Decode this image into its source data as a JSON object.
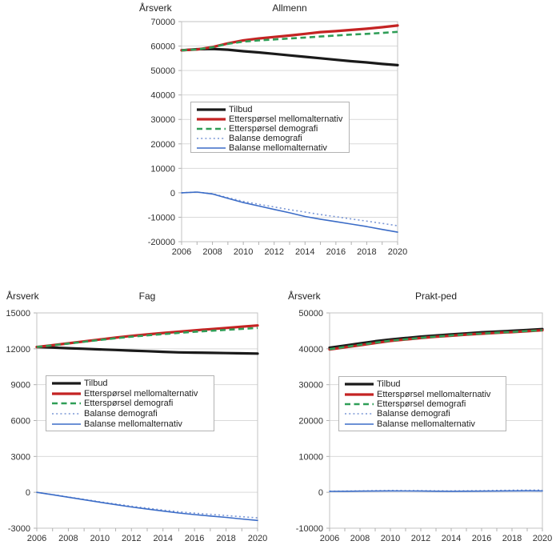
{
  "figure": {
    "background": "#ffffff",
    "grid_color": "#d9d9d9",
    "axis_color": "#c3c3c3",
    "tick_color": "#b0b0b0",
    "label_color": "#303030"
  },
  "chart_data": [
    {
      "type": "line",
      "title": "Allmenn",
      "ylabel": "Årsverk",
      "x": [
        2006,
        2007,
        2008,
        2009,
        2010,
        2011,
        2012,
        2013,
        2014,
        2015,
        2016,
        2017,
        2018,
        2019,
        2020
      ],
      "xtick_labels": [
        "2006",
        "2008",
        "2010",
        "2012",
        "2014",
        "2016",
        "2018",
        "2020"
      ],
      "ylim": [
        -20000,
        70000
      ],
      "yticks": [
        -20000,
        -10000,
        0,
        10000,
        20000,
        30000,
        40000,
        50000,
        60000,
        70000
      ],
      "grid": "horizontal",
      "legend_position": "inside-left-middle",
      "series": [
        {
          "name": "Tilbud",
          "color": "#1a1a1a",
          "style": "solid",
          "width": 3.2,
          "values": [
            58300,
            58700,
            58800,
            58500,
            57900,
            57400,
            56800,
            56200,
            55600,
            55000,
            54400,
            53800,
            53300,
            52700,
            52200
          ]
        },
        {
          "name": "Etterspørsel mellomalternativ",
          "color": "#c42323",
          "style": "solid",
          "width": 3.2,
          "values": [
            58300,
            58600,
            59600,
            61100,
            62300,
            63100,
            63700,
            64300,
            65000,
            65700,
            66100,
            66600,
            67100,
            67700,
            68400
          ]
        },
        {
          "name": "Etterspørsel demografi",
          "color": "#2f9e57",
          "style": "dashed",
          "width": 2.6,
          "values": [
            58300,
            58600,
            59500,
            60900,
            61800,
            62300,
            62700,
            63100,
            63500,
            63900,
            64300,
            64700,
            65000,
            65400,
            65800
          ]
        },
        {
          "name": "Balanse demografi",
          "color": "#7a97d6",
          "style": "dotted",
          "width": 1.6,
          "values": [
            0,
            300,
            -400,
            -2000,
            -3500,
            -4700,
            -5800,
            -6900,
            -7900,
            -8900,
            -9800,
            -10700,
            -11600,
            -12500,
            -13500
          ]
        },
        {
          "name": "Balanse mellomalternativ",
          "color": "#3b6cc7",
          "style": "solid",
          "width": 1.6,
          "values": [
            0,
            300,
            -500,
            -2300,
            -4000,
            -5400,
            -6800,
            -8200,
            -9700,
            -10800,
            -11800,
            -12800,
            -13800,
            -15000,
            -16100
          ]
        }
      ]
    },
    {
      "type": "line",
      "title": "Fag",
      "ylabel": "Årsverk",
      "x": [
        2006,
        2007,
        2008,
        2009,
        2010,
        2011,
        2012,
        2013,
        2014,
        2015,
        2016,
        2017,
        2018,
        2019,
        2020
      ],
      "xtick_labels": [
        "2006",
        "2008",
        "2010",
        "2012",
        "2014",
        "2016",
        "2018",
        "2020"
      ],
      "ylim": [
        -3000,
        15000
      ],
      "yticks": [
        -3000,
        0,
        3000,
        6000,
        9000,
        12000,
        15000
      ],
      "grid": "horizontal",
      "legend_position": "inside-left-middle",
      "series": [
        {
          "name": "Tilbud",
          "color": "#1a1a1a",
          "style": "solid",
          "width": 3.2,
          "values": [
            12150,
            12100,
            12050,
            12000,
            11950,
            11900,
            11850,
            11800,
            11750,
            11700,
            11680,
            11660,
            11640,
            11620,
            11600
          ]
        },
        {
          "name": "Etterspørsel mellomalternativ",
          "color": "#c42323",
          "style": "solid",
          "width": 3.2,
          "values": [
            12150,
            12300,
            12460,
            12620,
            12780,
            12930,
            13080,
            13200,
            13320,
            13430,
            13540,
            13640,
            13740,
            13850,
            13950
          ]
        },
        {
          "name": "Etterspørsel demografi",
          "color": "#2f9e57",
          "style": "dashed",
          "width": 2.6,
          "values": [
            12150,
            12290,
            12440,
            12590,
            12740,
            12880,
            13010,
            13120,
            13230,
            13330,
            13420,
            13500,
            13580,
            13660,
            13740
          ]
        },
        {
          "name": "Balanse demografi",
          "color": "#7a97d6",
          "style": "dotted",
          "width": 1.6,
          "values": [
            0,
            -190,
            -390,
            -590,
            -790,
            -980,
            -1160,
            -1320,
            -1480,
            -1630,
            -1740,
            -1840,
            -1940,
            -2040,
            -2140
          ]
        },
        {
          "name": "Balanse mellomalternativ",
          "color": "#3b6cc7",
          "style": "solid",
          "width": 1.6,
          "values": [
            0,
            -200,
            -410,
            -620,
            -830,
            -1030,
            -1230,
            -1400,
            -1570,
            -1730,
            -1860,
            -1980,
            -2100,
            -2230,
            -2350
          ]
        }
      ]
    },
    {
      "type": "line",
      "title": "Prakt-ped",
      "ylabel": "Årsverk",
      "x": [
        2006,
        2007,
        2008,
        2009,
        2010,
        2011,
        2012,
        2013,
        2014,
        2015,
        2016,
        2017,
        2018,
        2019,
        2020
      ],
      "xtick_labels": [
        "2006",
        "2008",
        "2010",
        "2012",
        "2014",
        "2016",
        "2018",
        "2020"
      ],
      "ylim": [
        -10000,
        50000
      ],
      "yticks": [
        -10000,
        0,
        10000,
        20000,
        30000,
        40000,
        50000
      ],
      "grid": "horizontal",
      "legend_position": "inside-left-middle",
      "series": [
        {
          "name": "Tilbud",
          "color": "#1a1a1a",
          "style": "solid",
          "width": 3.2,
          "values": [
            40300,
            40900,
            41500,
            42100,
            42600,
            43000,
            43400,
            43700,
            44000,
            44300,
            44600,
            44800,
            45000,
            45250,
            45500
          ]
        },
        {
          "name": "Etterspørsel mellomalternativ",
          "color": "#c42323",
          "style": "solid",
          "width": 3.2,
          "values": [
            39800,
            40400,
            41000,
            41600,
            42200,
            42600,
            43000,
            43350,
            43650,
            43950,
            44200,
            44450,
            44650,
            44900,
            45150
          ]
        },
        {
          "name": "Etterspørsel demografi",
          "color": "#2f9e57",
          "style": "dashed",
          "width": 2.6,
          "values": [
            39900,
            40500,
            41100,
            41700,
            42250,
            42650,
            43050,
            43400,
            43700,
            44000,
            44250,
            44500,
            44700,
            44950,
            45150
          ]
        },
        {
          "name": "Balanse demografi",
          "color": "#7a97d6",
          "style": "dotted",
          "width": 1.6,
          "values": [
            300,
            350,
            400,
            450,
            500,
            480,
            450,
            420,
            400,
            430,
            470,
            520,
            570,
            620,
            600
          ]
        },
        {
          "name": "Balanse mellomalternativ",
          "color": "#3b6cc7",
          "style": "solid",
          "width": 1.6,
          "values": [
            250,
            280,
            320,
            360,
            400,
            380,
            340,
            300,
            280,
            300,
            330,
            360,
            390,
            420,
            400
          ]
        }
      ]
    }
  ]
}
